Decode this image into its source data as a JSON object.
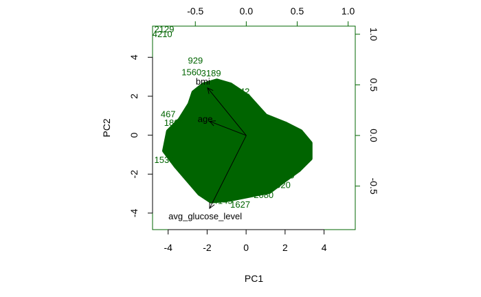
{
  "chart_data": {
    "type": "scatter",
    "subtype": "biplot",
    "title": "",
    "xlabel": "PC1",
    "ylabel": "PC2",
    "xlim": [
      -4.8,
      5.6
    ],
    "ylim": [
      -4.85,
      5.6
    ],
    "xticks": [
      -4,
      -2,
      0,
      2,
      4
    ],
    "xtick_labels": [
      "-4",
      "-2",
      "0",
      "2",
      "4"
    ],
    "yticks": [
      -4,
      -2,
      0,
      2,
      4
    ],
    "ytick_labels": [
      "-4",
      "-2",
      "0",
      "2",
      "4"
    ],
    "loading_xlim": [
      -0.92,
      1.07
    ],
    "loading_ylim": [
      -0.93,
      1.08
    ],
    "loading_xticks": [
      -0.5,
      0.0,
      0.5,
      1.0
    ],
    "loading_xtick_labels": [
      "-0.5",
      "0.0",
      "0.5",
      "1.0"
    ],
    "loading_yticks": [
      -0.5,
      0.0,
      0.5,
      1.0
    ],
    "loading_ytick_labels": [
      "-0.5",
      "0.0",
      "0.5",
      "1.0"
    ],
    "grid": false,
    "point_color": "#006400",
    "arrow_color": "#000000",
    "axis_color": "#000000",
    "top_right_axis_color": "#006400",
    "loadings": [
      {
        "name": "bmi",
        "x": -0.38,
        "y": 0.47
      },
      {
        "name": "age",
        "x": -0.36,
        "y": 0.14
      },
      {
        "name": "avg_glucose_level",
        "x": -0.36,
        "y": -0.72
      }
    ],
    "observation_labels": [
      {
        "label": "2129",
        "x": -4.2,
        "y": 5.4
      },
      {
        "label": "4210",
        "x": -4.3,
        "y": 5.15
      },
      {
        "label": "929",
        "x": -2.6,
        "y": 3.8
      },
      {
        "label": "1560",
        "x": -2.8,
        "y": 3.2
      },
      {
        "label": "3189",
        "x": -1.8,
        "y": 3.15
      },
      {
        "label": "142",
        "x": -0.2,
        "y": 2.2
      },
      {
        "label": "467",
        "x": -4.0,
        "y": 1.05
      },
      {
        "label": "1809",
        "x": -3.7,
        "y": 0.6
      },
      {
        "label": "1530",
        "x": -4.2,
        "y": -1.3
      },
      {
        "label": "610",
        "x": 2.1,
        "y": -2.1
      },
      {
        "label": "520",
        "x": 1.9,
        "y": -2.6
      },
      {
        "label": "2080",
        "x": 0.9,
        "y": -3.1
      },
      {
        "label": "1627",
        "x": -0.3,
        "y": -3.6
      },
      {
        "label": "4145",
        "x": -1.2,
        "y": -3.4
      }
    ],
    "point_cloud_outline": [
      [
        -2.2,
        2.6
      ],
      [
        -1.5,
        2.8
      ],
      [
        -0.8,
        2.6
      ],
      [
        0.1,
        2.0
      ],
      [
        1.0,
        1.0
      ],
      [
        2.0,
        0.6
      ],
      [
        2.8,
        0.2
      ],
      [
        3.3,
        -0.4
      ],
      [
        3.3,
        -1.2
      ],
      [
        2.7,
        -1.8
      ],
      [
        2.0,
        -2.3
      ],
      [
        1.2,
        -2.9
      ],
      [
        0.2,
        -3.1
      ],
      [
        -0.8,
        -3.3
      ],
      [
        -1.8,
        -3.4
      ],
      [
        -2.4,
        -3.0
      ],
      [
        -3.0,
        -2.3
      ],
      [
        -3.6,
        -1.6
      ],
      [
        -4.2,
        -0.8
      ],
      [
        -4.0,
        0.2
      ],
      [
        -3.4,
        0.8
      ],
      [
        -2.9,
        1.6
      ],
      [
        -2.7,
        2.2
      ]
    ]
  }
}
